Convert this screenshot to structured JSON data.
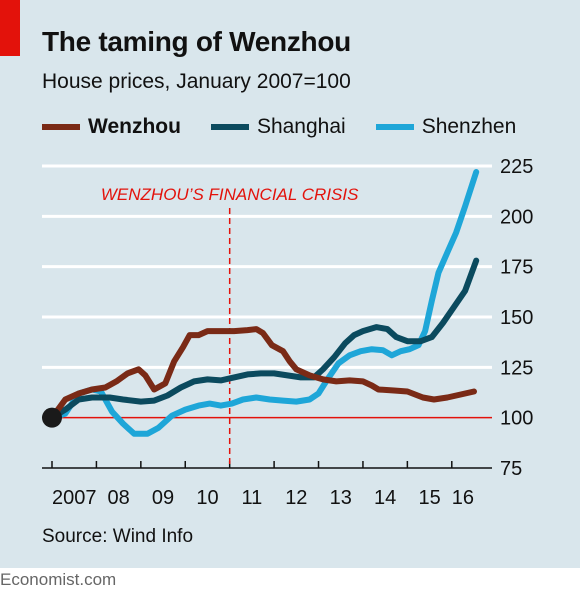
{
  "title": "The taming of Wenzhou",
  "subtitle": "House prices, January 2007=100",
  "source": "Source: Wind Info",
  "footer": "Economist.com",
  "chart_data": {
    "type": "line",
    "ylim": [
      75,
      225
    ],
    "y_ticks": [
      75,
      100,
      125,
      150,
      175,
      200,
      225
    ],
    "y_tick_labels": [
      "75",
      "100",
      "125",
      "150",
      "175",
      "200",
      "225"
    ],
    "x_range": [
      2007,
      2016.5
    ],
    "x_tick_labels": [
      {
        "label": "2007",
        "x": 2007.5
      },
      {
        "label": "08",
        "x": 2008.5
      },
      {
        "label": "09",
        "x": 2009.5
      },
      {
        "label": "10",
        "x": 2010.5
      },
      {
        "label": "11",
        "x": 2011.5
      },
      {
        "label": "12",
        "x": 2012.5
      },
      {
        "label": "13",
        "x": 2013.5
      },
      {
        "label": "14",
        "x": 2014.5
      },
      {
        "label": "15",
        "x": 2015.5
      },
      {
        "label": "16",
        "x": 2016.25
      }
    ],
    "grid": true,
    "legend_position": "top",
    "annotation": {
      "text": "WENZHOU’S FINANCIAL CRISIS",
      "x": 2011.0
    },
    "baseline": 100,
    "start_point": {
      "x": 2007.0,
      "y": 100
    },
    "series": [
      {
        "name": "Wenzhou",
        "color": "#7a2a16",
        "width": 6,
        "points": [
          [
            2007.0,
            100
          ],
          [
            2007.3,
            109
          ],
          [
            2007.6,
            112
          ],
          [
            2007.9,
            114
          ],
          [
            2008.2,
            115
          ],
          [
            2008.45,
            118
          ],
          [
            2008.7,
            122
          ],
          [
            2008.95,
            124
          ],
          [
            2009.1,
            121
          ],
          [
            2009.3,
            114
          ],
          [
            2009.55,
            117
          ],
          [
            2009.75,
            128
          ],
          [
            2009.95,
            135
          ],
          [
            2010.1,
            141
          ],
          [
            2010.3,
            141
          ],
          [
            2010.5,
            143
          ],
          [
            2010.8,
            143
          ],
          [
            2011.1,
            143
          ],
          [
            2011.4,
            143.5
          ],
          [
            2011.6,
            144
          ],
          [
            2011.75,
            142
          ],
          [
            2011.95,
            136
          ],
          [
            2012.2,
            133
          ],
          [
            2012.35,
            128
          ],
          [
            2012.5,
            124
          ],
          [
            2012.8,
            121
          ],
          [
            2013.1,
            119
          ],
          [
            2013.4,
            118
          ],
          [
            2013.7,
            118.5
          ],
          [
            2014.0,
            118
          ],
          [
            2014.2,
            116
          ],
          [
            2014.35,
            114
          ],
          [
            2014.7,
            113.5
          ],
          [
            2015.0,
            113
          ],
          [
            2015.35,
            110
          ],
          [
            2015.6,
            109
          ],
          [
            2015.9,
            110
          ],
          [
            2016.2,
            111.5
          ],
          [
            2016.5,
            113
          ]
        ]
      },
      {
        "name": "Shanghai",
        "color": "#0b4a5e",
        "width": 6,
        "points": [
          [
            2007.0,
            100
          ],
          [
            2007.3,
            104
          ],
          [
            2007.6,
            109
          ],
          [
            2007.9,
            110
          ],
          [
            2008.3,
            110
          ],
          [
            2008.6,
            109
          ],
          [
            2009.0,
            108
          ],
          [
            2009.3,
            108.5
          ],
          [
            2009.6,
            111
          ],
          [
            2009.9,
            115
          ],
          [
            2010.2,
            118
          ],
          [
            2010.5,
            119
          ],
          [
            2010.8,
            118.5
          ],
          [
            2011.1,
            120
          ],
          [
            2011.4,
            121.5
          ],
          [
            2011.7,
            122
          ],
          [
            2012.0,
            122
          ],
          [
            2012.3,
            121
          ],
          [
            2012.6,
            120
          ],
          [
            2012.9,
            120
          ],
          [
            2013.1,
            124
          ],
          [
            2013.35,
            130
          ],
          [
            2013.6,
            137
          ],
          [
            2013.8,
            141
          ],
          [
            2014.0,
            143
          ],
          [
            2014.3,
            145
          ],
          [
            2014.55,
            144
          ],
          [
            2014.75,
            140
          ],
          [
            2015.0,
            138
          ],
          [
            2015.3,
            138
          ],
          [
            2015.55,
            140
          ],
          [
            2015.8,
            147
          ],
          [
            2016.05,
            155
          ],
          [
            2016.3,
            163
          ],
          [
            2016.55,
            178
          ]
        ]
      },
      {
        "name": "Shenzhen",
        "color": "#1ea6d8",
        "width": 6,
        "points": [
          [
            2007.0,
            100
          ],
          [
            2007.3,
            102
          ],
          [
            2007.6,
            112
          ],
          [
            2007.9,
            114
          ],
          [
            2008.1,
            113
          ],
          [
            2008.35,
            103
          ],
          [
            2008.6,
            97
          ],
          [
            2008.85,
            92
          ],
          [
            2009.15,
            92
          ],
          [
            2009.4,
            95
          ],
          [
            2009.7,
            101
          ],
          [
            2010.0,
            104
          ],
          [
            2010.3,
            106
          ],
          [
            2010.55,
            107
          ],
          [
            2010.8,
            106
          ],
          [
            2011.05,
            107
          ],
          [
            2011.3,
            109
          ],
          [
            2011.6,
            110
          ],
          [
            2011.9,
            109
          ],
          [
            2012.2,
            108.5
          ],
          [
            2012.5,
            108
          ],
          [
            2012.8,
            109
          ],
          [
            2013.0,
            112
          ],
          [
            2013.2,
            119
          ],
          [
            2013.45,
            127
          ],
          [
            2013.7,
            131
          ],
          [
            2013.95,
            133
          ],
          [
            2014.2,
            134
          ],
          [
            2014.45,
            133.5
          ],
          [
            2014.65,
            131
          ],
          [
            2014.85,
            133
          ],
          [
            2015.05,
            134
          ],
          [
            2015.25,
            136
          ],
          [
            2015.4,
            143
          ],
          [
            2015.55,
            158
          ],
          [
            2015.7,
            172
          ],
          [
            2015.9,
            182
          ],
          [
            2016.1,
            192
          ],
          [
            2016.3,
            205
          ],
          [
            2016.55,
            222
          ]
        ]
      }
    ]
  }
}
